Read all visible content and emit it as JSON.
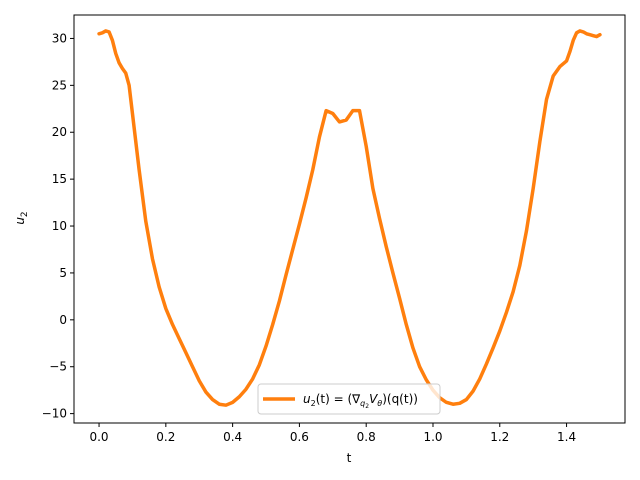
{
  "chart_data": {
    "type": "line",
    "xlabel": "t",
    "ylabel": "u₂",
    "xlim": [
      -0.075,
      1.575
    ],
    "ylim": [
      -11.0,
      32.5
    ],
    "xticks": [
      0.0,
      0.2,
      0.4,
      0.6,
      0.8,
      1.0,
      1.2,
      1.4
    ],
    "xtick_labels": [
      "0.0",
      "0.2",
      "0.4",
      "0.6",
      "0.8",
      "1.0",
      "1.2",
      "1.4"
    ],
    "yticks": [
      -10,
      -5,
      0,
      5,
      10,
      15,
      20,
      25,
      30
    ],
    "ytick_labels": [
      "−10",
      "−5",
      "0",
      "5",
      "10",
      "15",
      "20",
      "25",
      "30"
    ],
    "grid": false,
    "legend_position": "lower center",
    "series": [
      {
        "name": "u₂(t) = (∇q₂Vθ)(q(t))",
        "color": "#ff7f0e",
        "x": [
          0.0,
          0.01,
          0.02,
          0.03,
          0.04,
          0.05,
          0.06,
          0.07,
          0.08,
          0.09,
          0.1,
          0.12,
          0.14,
          0.16,
          0.18,
          0.2,
          0.22,
          0.24,
          0.26,
          0.28,
          0.3,
          0.32,
          0.34,
          0.36,
          0.38,
          0.4,
          0.42,
          0.44,
          0.46,
          0.48,
          0.5,
          0.52,
          0.54,
          0.56,
          0.58,
          0.6,
          0.62,
          0.64,
          0.66,
          0.68,
          0.7,
          0.72,
          0.74,
          0.75,
          0.76,
          0.78,
          0.8,
          0.82,
          0.84,
          0.86,
          0.88,
          0.9,
          0.92,
          0.94,
          0.96,
          0.98,
          1.0,
          1.02,
          1.04,
          1.06,
          1.08,
          1.1,
          1.12,
          1.14,
          1.16,
          1.18,
          1.2,
          1.22,
          1.24,
          1.26,
          1.28,
          1.3,
          1.32,
          1.34,
          1.36,
          1.38,
          1.4,
          1.41,
          1.42,
          1.43,
          1.44,
          1.45,
          1.46,
          1.47,
          1.48,
          1.49,
          1.5
        ],
        "values": [
          30.5,
          30.6,
          30.8,
          30.7,
          29.8,
          28.4,
          27.4,
          26.8,
          26.3,
          25.0,
          22.0,
          16.0,
          10.5,
          6.5,
          3.5,
          1.2,
          -0.5,
          -2.0,
          -3.5,
          -5.0,
          -6.5,
          -7.7,
          -8.5,
          -9.0,
          -9.1,
          -8.8,
          -8.2,
          -7.4,
          -6.3,
          -4.8,
          -2.8,
          -0.5,
          2.0,
          4.8,
          7.5,
          10.2,
          13.0,
          16.0,
          19.5,
          22.3,
          22.0,
          21.1,
          21.3,
          21.8,
          22.3,
          22.3,
          18.5,
          14.0,
          10.8,
          7.8,
          5.0,
          2.3,
          -0.5,
          -3.0,
          -5.0,
          -6.4,
          -7.5,
          -8.3,
          -8.8,
          -9.0,
          -8.9,
          -8.5,
          -7.6,
          -6.3,
          -4.7,
          -3.0,
          -1.2,
          0.8,
          3.0,
          5.8,
          9.5,
          14.0,
          19.0,
          23.5,
          26.0,
          27.0,
          27.6,
          28.6,
          29.8,
          30.6,
          30.8,
          30.7,
          30.5,
          30.4,
          30.3,
          30.2,
          30.4
        ]
      }
    ]
  },
  "legend": {
    "text_main": "u",
    "text_sub": "2",
    "text_rest": "(t) = (∇",
    "nabla_sub": "q",
    "nabla_subsub": "2",
    "text_v": "V",
    "v_sub": "θ",
    "text_tail": ")(q(t))"
  },
  "ylabel_main": "u",
  "ylabel_sub": "2"
}
